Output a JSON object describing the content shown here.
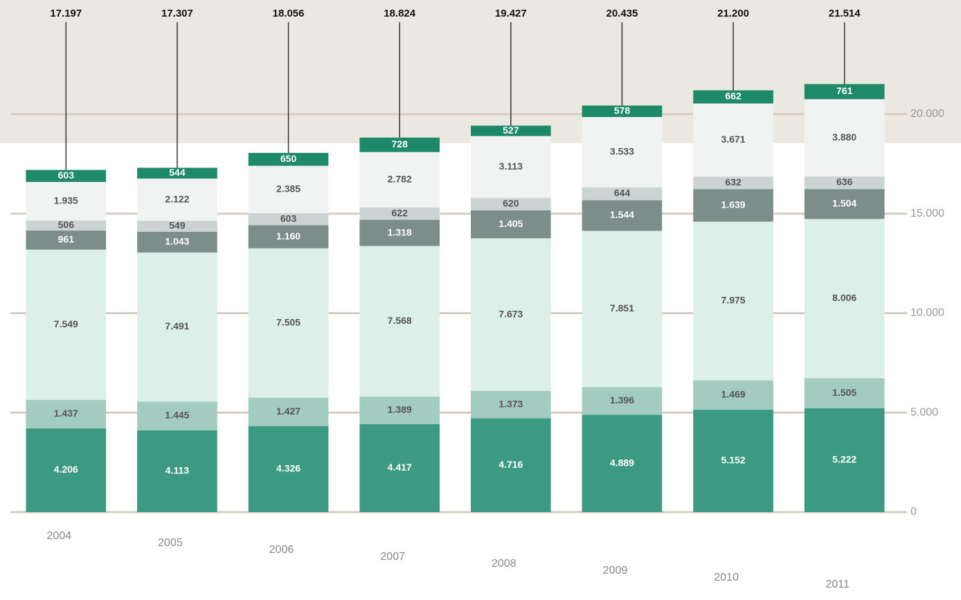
{
  "chart_data": {
    "type": "stacked_bar",
    "categories": [
      "2004",
      "2005",
      "2006",
      "2007",
      "2008",
      "2009",
      "2010",
      "2011"
    ],
    "series": [
      {
        "color": "#3b9a7f",
        "values": [
          4206,
          4113,
          4326,
          4417,
          4716,
          4889,
          5152,
          5222
        ],
        "value_labels": [
          "4.206",
          "4.113",
          "4.326",
          "4.417",
          "4.716",
          "4.889",
          "5.152",
          "5.222"
        ]
      },
      {
        "color": "#a3cbbf",
        "values": [
          1437,
          1445,
          1427,
          1389,
          1373,
          1396,
          1469,
          1505
        ],
        "value_labels": [
          "1.437",
          "1.445",
          "1.427",
          "1.389",
          "1.373",
          "1.396",
          "1.469",
          "1.505"
        ]
      },
      {
        "color": "#dcefe8",
        "values": [
          7549,
          7491,
          7505,
          7568,
          7673,
          7851,
          7975,
          8006
        ],
        "value_labels": [
          "7.549",
          "7.491",
          "7.505",
          "7.568",
          "7.673",
          "7.851",
          "7.975",
          "8.006"
        ]
      },
      {
        "color": "#7d8d8a",
        "values": [
          961,
          1043,
          1160,
          1318,
          1405,
          1544,
          1639,
          1504
        ],
        "value_labels": [
          "961",
          "1.043",
          "1.160",
          "1.318",
          "1.405",
          "1.544",
          "1.639",
          "1.504"
        ]
      },
      {
        "color": "#cbd4d2",
        "values": [
          506,
          549,
          603,
          622,
          620,
          644,
          632,
          636
        ],
        "value_labels": [
          "506",
          "549",
          "603",
          "622",
          "620",
          "644",
          "632",
          "636"
        ]
      },
      {
        "color": "#f1f3f3",
        "values": [
          1935,
          2122,
          2385,
          2782,
          3113,
          3533,
          3671,
          3880
        ],
        "value_labels": [
          "1.935",
          "2.122",
          "2.385",
          "2.782",
          "3.113",
          "3.533",
          "3.671",
          "3.880"
        ]
      },
      {
        "color": "#1f8a69",
        "values": [
          603,
          544,
          650,
          728,
          527,
          578,
          662,
          761
        ],
        "value_labels": [
          "603",
          "544",
          "650",
          "728",
          "527",
          "578",
          "662",
          "761"
        ]
      }
    ],
    "totals": {
      "values": [
        17197,
        17307,
        18056,
        18824,
        19427,
        20435,
        21200,
        21514
      ],
      "value_labels": [
        "17.197",
        "17.307",
        "18.056",
        "18.824",
        "19.427",
        "20.435",
        "21.200",
        "21.514"
      ]
    },
    "ylim": [
      0,
      22000
    ],
    "yticks": [
      0,
      {
        "value": 5000,
        "label": "5.000"
      },
      {
        "value": 10000,
        "label": "10.000"
      },
      {
        "value": 15000,
        "label": "15.000"
      },
      {
        "value": 20000,
        "label": "20.000"
      }
    ],
    "grid": true
  }
}
